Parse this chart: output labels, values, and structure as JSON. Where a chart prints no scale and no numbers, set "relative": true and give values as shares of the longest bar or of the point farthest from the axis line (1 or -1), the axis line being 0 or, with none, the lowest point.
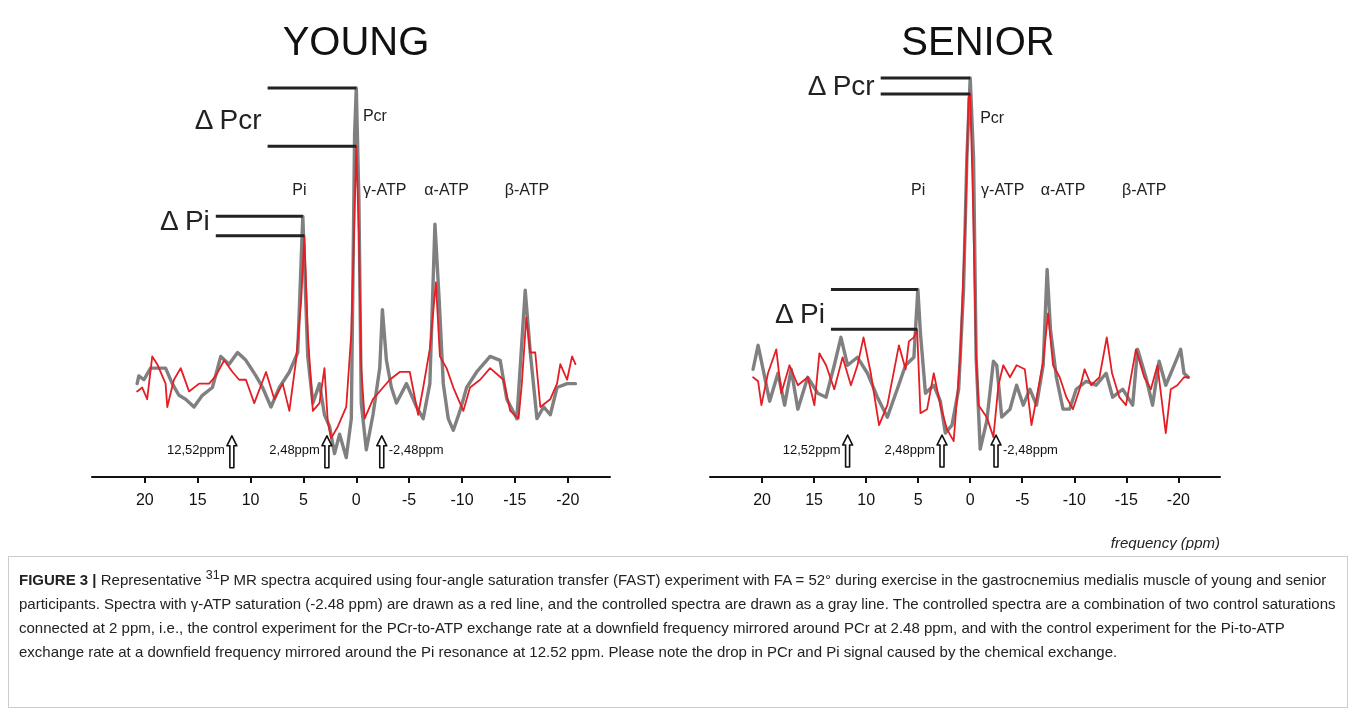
{
  "chart_data": [
    {
      "type": "line",
      "title": "YOUNG",
      "relative": true,
      "marker": "none",
      "xlim": [
        25,
        -24
      ],
      "xticks": [
        20,
        15,
        10,
        5,
        0,
        -5,
        -10,
        -15,
        -20
      ],
      "series": [
        {
          "color": "#808080",
          "x": [
            20.73,
            20.57,
            20.09,
            19.46,
            18.67,
            18.04,
            17.41,
            16.77,
            16.14,
            15.35,
            14.56,
            13.61,
            12.82,
            12.03,
            11.23,
            10.44,
            9.49,
            8.86,
            8.07,
            7.28,
            6.33,
            5.54,
            5.06,
            4.59,
            4.11,
            3.48,
            3.01,
            2.53,
            2.06,
            1.58,
            0.95,
            0.47,
            0.16,
            0,
            -0.25,
            -0.47,
            -0.95,
            -1.58,
            -2.22,
            -2.47,
            -2.85,
            -3.32,
            -3.8,
            -4.75,
            -5.7,
            -6.33,
            -6.96,
            -7.44,
            -7.85,
            -8.23,
            -8.7,
            -9.18,
            -9.81,
            -10.44,
            -11.39,
            -12.66,
            -13.61,
            -14.24,
            -15.19,
            -15.98,
            -16.46,
            -17.09,
            -17.72,
            -18.35,
            -18.99,
            -19.94,
            -20.73
          ],
          "values": [
            0.24,
            0.26,
            0.25,
            0.28,
            0.28,
            0.28,
            0.24,
            0.21,
            0.2,
            0.18,
            0.21,
            0.23,
            0.31,
            0.29,
            0.32,
            0.3,
            0.26,
            0.23,
            0.18,
            0.23,
            0.27,
            0.32,
            0.67,
            0.31,
            0.19,
            0.24,
            0.16,
            0.13,
            0.06,
            0.11,
            0.05,
            0.15,
            0.88,
            1,
            0.71,
            0.19,
            0.07,
            0.16,
            0.28,
            0.43,
            0.3,
            0.23,
            0.19,
            0.24,
            0.18,
            0.15,
            0.24,
            0.65,
            0.45,
            0.24,
            0.15,
            0.12,
            0.17,
            0.23,
            0.27,
            0.31,
            0.3,
            0.2,
            0.15,
            0.48,
            0.32,
            0.15,
            0.18,
            0.16,
            0.23,
            0.24,
            0.24
          ]
        },
        {
          "color": "#e31e24",
          "x": [
            20.73,
            20.25,
            19.78,
            19.3,
            18.83,
            18.04,
            17.88,
            17.25,
            16.61,
            15.82,
            14.87,
            13.92,
            13.29,
            12.5,
            11.71,
            11.08,
            10.44,
            9.65,
            8.54,
            7.75,
            6.96,
            6.33,
            5.7,
            5.22,
            4.91,
            4.59,
            4.11,
            3.48,
            3.01,
            2.69,
            2.37,
            1.74,
            0.95,
            0.47,
            0.22,
            0,
            -0.25,
            -0.47,
            -0.79,
            -1.58,
            -2.53,
            -3.16,
            -4.11,
            -5.06,
            -5.85,
            -6.33,
            -6.96,
            -7.53,
            -7.91,
            -8.54,
            -9.18,
            -9.81,
            -10.13,
            -10.76,
            -11.71,
            -12.66,
            -13.92,
            -14.56,
            -15.35,
            -15.66,
            -16.08,
            -16.46,
            -16.93,
            -17.41,
            -18.35,
            -18.99,
            -19.3,
            -19.94,
            -20.41,
            -20.73
          ],
          "values": [
            0.22,
            0.23,
            0.2,
            0.31,
            0.29,
            0.24,
            0.18,
            0.25,
            0.28,
            0.22,
            0.24,
            0.24,
            0.26,
            0.3,
            0.27,
            0.25,
            0.25,
            0.19,
            0.27,
            0.2,
            0.24,
            0.17,
            0.3,
            0.45,
            0.62,
            0.37,
            0.17,
            0.19,
            0.28,
            0.14,
            0.1,
            0.13,
            0.18,
            0.37,
            0.62,
            0.85,
            0.62,
            0.28,
            0.15,
            0.2,
            0.23,
            0.25,
            0.27,
            0.27,
            0.16,
            0.23,
            0.33,
            0.5,
            0.31,
            0.28,
            0.23,
            0.19,
            0.17,
            0.23,
            0.25,
            0.28,
            0.25,
            0.17,
            0.15,
            0.24,
            0.41,
            0.32,
            0.32,
            0.18,
            0.2,
            0.24,
            0.29,
            0.25,
            0.31,
            0.29
          ]
        }
      ],
      "annotations": [
        "Pcr",
        "Pi",
        "γ-ATP",
        "α-ATP",
        "β-ATP",
        "Δ Pcr",
        "Δ Pi",
        "12,52ppm",
        "2,48ppm",
        "-2,48ppm"
      ]
    },
    {
      "type": "line",
      "title": "SENIOR",
      "xlabel": "frequency (ppm)",
      "relative": true,
      "marker": "none",
      "xlim": [
        25,
        -24
      ],
      "xticks": [
        20,
        15,
        10,
        5,
        0,
        -5,
        -10,
        -15,
        -20
      ],
      "series": [
        {
          "color": "#808080",
          "x": [
            20.86,
            20.38,
            19.9,
            19.27,
            18.47,
            17.83,
            17.2,
            16.56,
            15.61,
            14.65,
            13.85,
            13.06,
            12.42,
            11.78,
            10.83,
            9.87,
            8.92,
            7.96,
            7.01,
            6.21,
            5.41,
            5.03,
            4.78,
            4.3,
            3.5,
            2.87,
            2.39,
            1.75,
            1.11,
            0.64,
            0.32,
            0,
            -0.32,
            -0.57,
            -0.96,
            -1.59,
            -2.23,
            -2.55,
            -3.03,
            -3.82,
            -4.46,
            -5.1,
            -5.73,
            -6.37,
            -7.01,
            -7.39,
            -7.71,
            -8.28,
            -8.92,
            -9.55,
            -10.19,
            -11.15,
            -12.1,
            -13.06,
            -13.69,
            -14.65,
            -15.61,
            -16.08,
            -16.88,
            -17.52,
            -18.15,
            -18.79,
            -19.75,
            -20.22,
            -20.54,
            -20.96
          ],
          "values": [
            0.27,
            0.33,
            0.27,
            0.19,
            0.26,
            0.18,
            0.27,
            0.17,
            0.25,
            0.21,
            0.2,
            0.28,
            0.35,
            0.28,
            0.3,
            0.26,
            0.2,
            0.15,
            0.22,
            0.28,
            0.3,
            0.47,
            0.36,
            0.21,
            0.23,
            0.19,
            0.11,
            0.13,
            0.22,
            0.47,
            0.8,
            1,
            0.8,
            0.3,
            0.07,
            0.14,
            0.29,
            0.28,
            0.15,
            0.17,
            0.23,
            0.18,
            0.22,
            0.18,
            0.28,
            0.52,
            0.37,
            0.25,
            0.17,
            0.17,
            0.22,
            0.24,
            0.23,
            0.26,
            0.2,
            0.22,
            0.18,
            0.32,
            0.25,
            0.18,
            0.29,
            0.23,
            0.29,
            0.32,
            0.26,
            0.25
          ]
        },
        {
          "color": "#e31e24",
          "x": [
            20.86,
            20.38,
            20.06,
            19.43,
            18.63,
            18.15,
            17.36,
            16.56,
            15.61,
            14.97,
            14.49,
            13.85,
            13.06,
            12.26,
            11.46,
            10.83,
            10.25,
            9.55,
            8.76,
            7.96,
            6.85,
            6.21,
            5.89,
            5.41,
            5.1,
            4.78,
            4.14,
            3.5,
            2.87,
            2.23,
            1.59,
            0.96,
            0.48,
            0.16,
            0,
            -0.25,
            -0.57,
            -0.8,
            -1.59,
            -2.23,
            -2.71,
            -3.18,
            -3.82,
            -4.46,
            -5.25,
            -5.89,
            -6.53,
            -7.01,
            -7.48,
            -7.96,
            -8.6,
            -9.24,
            -9.87,
            -10.51,
            -10.99,
            -11.62,
            -12.42,
            -13.12,
            -13.63,
            -14.33,
            -14.97,
            -15.92,
            -16.72,
            -17.36,
            -17.99,
            -18.79,
            -19.27,
            -19.9,
            -20.54,
            -20.96
          ],
          "values": [
            0.25,
            0.24,
            0.18,
            0.26,
            0.32,
            0.21,
            0.28,
            0.23,
            0.25,
            0.18,
            0.31,
            0.28,
            0.22,
            0.3,
            0.23,
            0.28,
            0.35,
            0.26,
            0.13,
            0.18,
            0.33,
            0.27,
            0.34,
            0.35,
            0.37,
            0.16,
            0.17,
            0.26,
            0.18,
            0.12,
            0.09,
            0.3,
            0.63,
            0.95,
            0.96,
            0.71,
            0.3,
            0.18,
            0.15,
            0.1,
            0.23,
            0.28,
            0.25,
            0.28,
            0.27,
            0.13,
            0.22,
            0.29,
            0.41,
            0.28,
            0.25,
            0.2,
            0.17,
            0.22,
            0.27,
            0.23,
            0.25,
            0.35,
            0.26,
            0.2,
            0.18,
            0.32,
            0.25,
            0.22,
            0.28,
            0.11,
            0.22,
            0.23,
            0.25,
            0.25
          ]
        }
      ],
      "annotations": [
        "Pcr",
        "Pi",
        "γ-ATP",
        "α-ATP",
        "β-ATP",
        "Δ Pcr",
        "Δ Pi",
        "12,52ppm",
        "2,48ppm",
        "-2,48ppm",
        "FIGURE 3 |",
        "Representative $^{31}$P MR spectra acquired using four-angle saturation transfer (FAST) experiment with FA = 52° during exercise in the gastrocnemius medialis muscle of young and senior participants. Spectra with γ-ATP saturation (-2.48 ppm) are drawn as a red line, and the controlled spectra are drawn as a gray line. The controlled spectra are a combination of two control saturations connected at 2 ppm, i.e., the control experiment for the PCr-to-ATP exchange rate at a downfield frequency mirrored around PCr at 2.48 ppm, and with the control experiment for the Pi-to-ATP exchange rate at a downfield frequency mirrored around the Pi resonance at 12.52 ppm. Please note the drop in PCr and Pi signal caused by the chemical exchange."
      ]
    }
  ]
}
